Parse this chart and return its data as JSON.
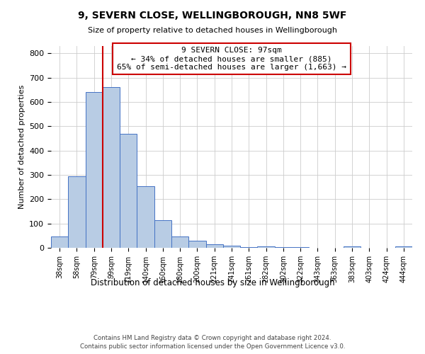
{
  "title": "9, SEVERN CLOSE, WELLINGBOROUGH, NN8 5WF",
  "subtitle": "Size of property relative to detached houses in Wellingborough",
  "xlabel": "Distribution of detached houses by size in Wellingborough",
  "ylabel": "Number of detached properties",
  "bar_labels": [
    "38sqm",
    "58sqm",
    "79sqm",
    "99sqm",
    "119sqm",
    "140sqm",
    "160sqm",
    "180sqm",
    "200sqm",
    "221sqm",
    "241sqm",
    "261sqm",
    "282sqm",
    "302sqm",
    "322sqm",
    "343sqm",
    "363sqm",
    "383sqm",
    "403sqm",
    "424sqm",
    "444sqm"
  ],
  "bar_values": [
    47,
    293,
    640,
    660,
    470,
    253,
    113,
    48,
    28,
    15,
    10,
    2,
    5,
    3,
    2,
    0,
    0,
    5,
    0,
    0,
    7
  ],
  "bar_color": "#b8cce4",
  "bar_edge_color": "#4472c4",
  "vline_pos": 2.5,
  "vline_color": "#cc0000",
  "annotation_title": "9 SEVERN CLOSE: 97sqm",
  "annotation_line1": "← 34% of detached houses are smaller (885)",
  "annotation_line2": "65% of semi-detached houses are larger (1,663) →",
  "annotation_box_color": "#cc0000",
  "ylim": [
    0,
    830
  ],
  "footer1": "Contains HM Land Registry data © Crown copyright and database right 2024.",
  "footer2": "Contains public sector information licensed under the Open Government Licence v3.0.",
  "bg_color": "#ffffff",
  "grid_color": "#cccccc"
}
